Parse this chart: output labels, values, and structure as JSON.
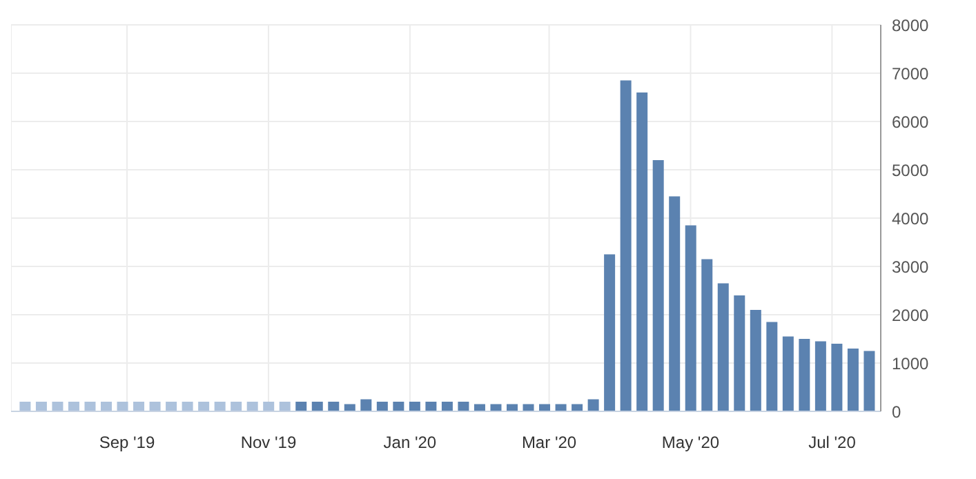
{
  "chart_data": {
    "type": "bar",
    "x": [
      "2019-07-19",
      "2019-07-26",
      "2019-08-02",
      "2019-08-09",
      "2019-08-16",
      "2019-08-23",
      "2019-08-30",
      "2019-09-06",
      "2019-09-13",
      "2019-09-20",
      "2019-09-27",
      "2019-10-04",
      "2019-10-11",
      "2019-10-18",
      "2019-10-25",
      "2019-11-01",
      "2019-11-08",
      "2019-11-15",
      "2019-11-22",
      "2019-11-29",
      "2019-12-06",
      "2019-12-13",
      "2019-12-20",
      "2019-12-27",
      "2020-01-03",
      "2020-01-10",
      "2020-01-17",
      "2020-01-24",
      "2020-01-31",
      "2020-02-07",
      "2020-02-14",
      "2020-02-21",
      "2020-02-28",
      "2020-03-06",
      "2020-03-13",
      "2020-03-20",
      "2020-03-27",
      "2020-04-03",
      "2020-04-10",
      "2020-04-17",
      "2020-04-24",
      "2020-05-01",
      "2020-05-08",
      "2020-05-15",
      "2020-05-22",
      "2020-05-29",
      "2020-06-05",
      "2020-06-12",
      "2020-06-19",
      "2020-06-26",
      "2020-07-03",
      "2020-07-10",
      "2020-07-17"
    ],
    "series": [
      {
        "color": "#adc2dc",
        "values": [
          200,
          200,
          200,
          200,
          200,
          200,
          200,
          200,
          200,
          200,
          200,
          200,
          200,
          200,
          200,
          200,
          200,
          null,
          null,
          null,
          null,
          null,
          null,
          null,
          null,
          null,
          null,
          null,
          null,
          null,
          null,
          null,
          null,
          null,
          null,
          null,
          null,
          null,
          null,
          null,
          null,
          null,
          null,
          null,
          null,
          null,
          null,
          null,
          null,
          null,
          null,
          null,
          null
        ]
      },
      {
        "color": "#5b82b0",
        "values": [
          null,
          null,
          null,
          null,
          null,
          null,
          null,
          null,
          null,
          null,
          null,
          null,
          null,
          null,
          null,
          null,
          null,
          200,
          200,
          200,
          150,
          250,
          200,
          200,
          200,
          200,
          200,
          200,
          150,
          150,
          150,
          150,
          150,
          150,
          150,
          250,
          3250,
          6850,
          6600,
          5200,
          4450,
          3850,
          3150,
          2650,
          2400,
          2100,
          1850,
          1550,
          1500,
          1450,
          1400,
          1300,
          1250
        ]
      }
    ],
    "xlim": [
      "2019-07-13",
      "2020-07-22"
    ],
    "xticks": [
      {
        "value": "2019-09-01",
        "label": "Sep '19"
      },
      {
        "value": "2019-11-01",
        "label": "Nov '19"
      },
      {
        "value": "2020-01-01",
        "label": "Jan '20"
      },
      {
        "value": "2020-03-01",
        "label": "Mar '20"
      },
      {
        "value": "2020-05-01",
        "label": "May '20"
      },
      {
        "value": "2020-07-01",
        "label": "Jul '20"
      }
    ],
    "ylim": [
      0,
      8000
    ],
    "yticks": [
      0,
      1000,
      2000,
      3000,
      4000,
      5000,
      6000,
      7000,
      8000
    ],
    "grid": true,
    "legend": false
  }
}
